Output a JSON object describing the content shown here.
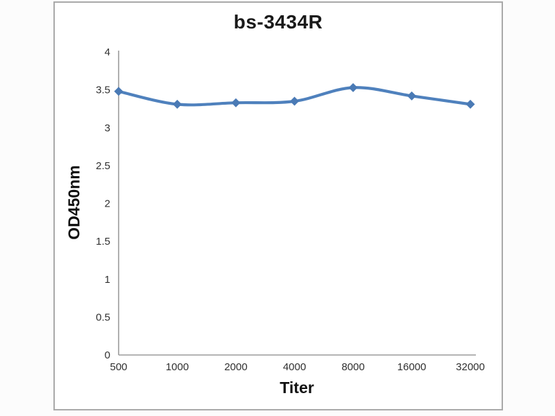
{
  "panel": {
    "border_color": "#a9a9a9",
    "background_color": "#ffffff"
  },
  "chart_data": {
    "type": "line",
    "title": "bs-3434R",
    "xlabel": "Titer",
    "ylabel": "OD450nm",
    "categories": [
      "500",
      "1000",
      "2000",
      "4000",
      "8000",
      "16000",
      "32000"
    ],
    "series": [
      {
        "name": "bs-3434R",
        "values": [
          3.48,
          3.31,
          3.33,
          3.35,
          3.53,
          3.42,
          3.31
        ]
      }
    ],
    "ylim": [
      0,
      4
    ],
    "ytick_labels": [
      "0",
      "0.5",
      "1",
      "1.5",
      "2",
      "2.5",
      "3",
      "3.5",
      "4"
    ],
    "grid": false,
    "legend": "none",
    "line_color": "#4f81bd",
    "marker": "diamond",
    "marker_color": "#4a7ab5",
    "axis_color": "#9b9b9b",
    "text_color": "#303030"
  }
}
